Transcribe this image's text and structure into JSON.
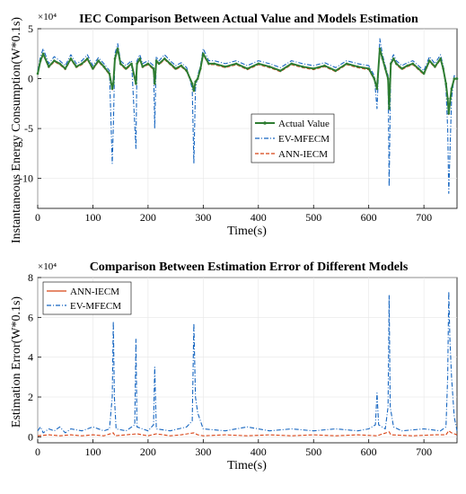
{
  "chart_data": [
    {
      "type": "line",
      "title": "IEC Comparison Between Actual Value and Models Estimation",
      "xlabel": "Time(s)",
      "ylabel": "Instantaneous Energy Consumption(W*0.1s)",
      "y_exponent_label": "×10⁴",
      "xlim": [
        0,
        760
      ],
      "ylim": [
        -13,
        5
      ],
      "xticks": [
        "0",
        "100",
        "200",
        "300",
        "400",
        "500",
        "600",
        "700"
      ],
      "yticks": [
        "5",
        "0",
        "-5",
        "-10"
      ],
      "legend_position": "center-right",
      "colors": {
        "actual": "#2e7d32",
        "ev": "#1565c0",
        "ann": "#d84315"
      },
      "series": [
        {
          "name": "Actual Value",
          "x": [
            0,
            5,
            10,
            20,
            30,
            40,
            50,
            60,
            70,
            80,
            90,
            100,
            110,
            120,
            130,
            135,
            137,
            140,
            145,
            150,
            160,
            170,
            178,
            180,
            185,
            190,
            200,
            210,
            212,
            215,
            220,
            230,
            240,
            250,
            260,
            270,
            280,
            283,
            286,
            290,
            295,
            300,
            310,
            320,
            340,
            360,
            380,
            400,
            420,
            440,
            460,
            480,
            500,
            520,
            540,
            560,
            580,
            600,
            610,
            615,
            620,
            625,
            630,
            635,
            637,
            640,
            645,
            650,
            660,
            670,
            680,
            690,
            700,
            710,
            720,
            730,
            735,
            740,
            743,
            745,
            748,
            750,
            755,
            760
          ],
          "y": [
            0.5,
            1.8,
            2.5,
            1.2,
            1.8,
            1.5,
            1.0,
            2.0,
            1.2,
            1.5,
            2.0,
            1.0,
            1.8,
            1.2,
            0.5,
            -1.0,
            -0.5,
            2.0,
            3.0,
            1.5,
            1.0,
            1.5,
            -0.5,
            1.5,
            2.0,
            1.2,
            1.5,
            1.0,
            -0.5,
            1.8,
            1.5,
            2.0,
            1.5,
            1.0,
            1.3,
            0.8,
            -0.5,
            -1.2,
            -0.3,
            0.0,
            1.0,
            2.5,
            1.5,
            1.5,
            1.2,
            1.5,
            1.0,
            1.5,
            1.2,
            0.8,
            1.5,
            1.2,
            1.0,
            1.3,
            0.8,
            1.5,
            1.2,
            1.0,
            0.0,
            -1.0,
            3.0,
            2.0,
            1.0,
            0.0,
            -3.0,
            1.5,
            2.0,
            1.5,
            1.0,
            1.3,
            1.5,
            1.0,
            0.5,
            1.8,
            1.2,
            2.0,
            1.0,
            -0.5,
            -2.0,
            -3.5,
            -2.0,
            -1.0,
            0.0,
            0.0
          ]
        },
        {
          "name": "EV-MFECM",
          "x": [
            0,
            5,
            10,
            20,
            30,
            40,
            50,
            60,
            70,
            80,
            90,
            100,
            110,
            120,
            130,
            135,
            137,
            140,
            145,
            150,
            160,
            170,
            178,
            180,
            185,
            190,
            200,
            210,
            212,
            215,
            220,
            230,
            240,
            250,
            260,
            270,
            280,
            283,
            286,
            290,
            295,
            300,
            310,
            320,
            340,
            360,
            380,
            400,
            420,
            440,
            460,
            480,
            500,
            520,
            540,
            560,
            580,
            600,
            610,
            615,
            620,
            625,
            630,
            635,
            637,
            640,
            645,
            650,
            660,
            670,
            680,
            690,
            700,
            710,
            720,
            730,
            735,
            740,
            743,
            745,
            748,
            750,
            755,
            760
          ],
          "y": [
            0.8,
            2.2,
            3.0,
            1.5,
            2.2,
            1.8,
            1.3,
            2.4,
            1.5,
            1.8,
            2.4,
            1.3,
            2.1,
            1.5,
            0.8,
            -8.5,
            -5.0,
            2.5,
            3.5,
            1.8,
            1.3,
            1.8,
            -7.0,
            1.8,
            2.4,
            1.5,
            1.8,
            1.3,
            -5.0,
            2.2,
            1.8,
            2.4,
            1.8,
            1.3,
            1.6,
            1.1,
            -1.0,
            -8.5,
            -1.0,
            0.3,
            1.3,
            3.0,
            1.8,
            1.8,
            1.5,
            1.8,
            1.3,
            1.8,
            1.5,
            1.1,
            1.8,
            1.5,
            1.3,
            1.6,
            1.1,
            1.8,
            1.5,
            1.3,
            0.3,
            -3.0,
            4.0,
            2.4,
            1.3,
            0.3,
            -10.8,
            1.8,
            2.4,
            1.8,
            1.3,
            1.6,
            1.8,
            1.3,
            0.8,
            2.2,
            1.5,
            2.4,
            1.3,
            -1.0,
            -5.0,
            -11.5,
            -6.0,
            -2.0,
            0.3,
            0.0
          ]
        },
        {
          "name": "ANN-IECM",
          "x": [
            0,
            5,
            10,
            20,
            30,
            40,
            50,
            60,
            70,
            80,
            90,
            100,
            110,
            120,
            130,
            135,
            137,
            140,
            145,
            150,
            160,
            170,
            178,
            180,
            185,
            190,
            200,
            210,
            212,
            215,
            220,
            230,
            240,
            250,
            260,
            270,
            280,
            283,
            286,
            290,
            295,
            300,
            310,
            320,
            340,
            360,
            380,
            400,
            420,
            440,
            460,
            480,
            500,
            520,
            540,
            560,
            580,
            600,
            610,
            615,
            620,
            625,
            630,
            635,
            637,
            640,
            645,
            650,
            660,
            670,
            680,
            690,
            700,
            710,
            720,
            730,
            735,
            740,
            743,
            745,
            748,
            750,
            755,
            760
          ],
          "y": [
            0.5,
            1.7,
            2.4,
            1.1,
            1.7,
            1.4,
            0.9,
            1.9,
            1.1,
            1.4,
            1.9,
            0.9,
            1.7,
            1.1,
            0.4,
            -1.2,
            -0.6,
            1.9,
            2.9,
            1.4,
            0.9,
            1.4,
            -0.6,
            1.4,
            1.9,
            1.1,
            1.4,
            0.9,
            -0.6,
            1.7,
            1.4,
            1.9,
            1.4,
            0.9,
            1.2,
            0.7,
            -0.6,
            -1.3,
            -0.4,
            -0.1,
            0.9,
            2.4,
            1.4,
            1.4,
            1.1,
            1.4,
            0.9,
            1.4,
            1.1,
            0.7,
            1.4,
            1.1,
            0.9,
            1.2,
            0.7,
            1.4,
            1.1,
            0.9,
            -0.1,
            -1.1,
            2.9,
            1.9,
            0.9,
            -0.1,
            -3.1,
            1.4,
            1.9,
            1.4,
            0.9,
            1.2,
            1.4,
            0.9,
            0.4,
            1.7,
            1.1,
            1.9,
            0.9,
            -0.6,
            -2.1,
            -3.6,
            -2.1,
            -1.1,
            -0.1,
            0.0
          ]
        }
      ]
    },
    {
      "type": "line",
      "title": "Comparison Between Estimation Error of Different Models",
      "xlabel": "Time(s)",
      "ylabel": "Estimation Error(W*0.1s)",
      "y_exponent_label": "×10⁴",
      "xlim": [
        0,
        760
      ],
      "ylim": [
        -0.3,
        8
      ],
      "xticks": [
        "0",
        "100",
        "200",
        "300",
        "400",
        "500",
        "600",
        "700"
      ],
      "yticks": [
        "8",
        "6",
        "4",
        "2",
        "0"
      ],
      "legend_position": "top-left",
      "colors": {
        "ann": "#d84315",
        "ev": "#1565c0"
      },
      "series": [
        {
          "name": "ANN-IECM",
          "x": [
            0,
            20,
            40,
            60,
            80,
            100,
            120,
            137,
            140,
            160,
            180,
            200,
            215,
            240,
            260,
            283,
            290,
            300,
            340,
            380,
            420,
            460,
            500,
            540,
            580,
            615,
            620,
            637,
            640,
            680,
            720,
            740,
            745,
            750,
            760
          ],
          "y": [
            0.05,
            0.1,
            0.05,
            0.1,
            0.05,
            0.1,
            0.05,
            0.2,
            0.05,
            0.1,
            0.15,
            0.05,
            0.15,
            0.05,
            0.1,
            0.2,
            0.1,
            0.05,
            0.1,
            0.05,
            0.1,
            0.05,
            0.1,
            0.05,
            0.1,
            0.05,
            0.1,
            0.25,
            0.1,
            0.05,
            0.1,
            0.1,
            0.3,
            0.2,
            0.1
          ]
        },
        {
          "name": "EV-MFECM",
          "x": [
            0,
            5,
            10,
            20,
            30,
            40,
            50,
            60,
            80,
            100,
            120,
            130,
            135,
            137,
            139,
            142,
            160,
            176,
            178,
            180,
            200,
            210,
            212,
            215,
            240,
            270,
            280,
            283,
            286,
            290,
            300,
            340,
            380,
            420,
            460,
            500,
            540,
            580,
            600,
            612,
            615,
            618,
            630,
            635,
            637,
            639,
            645,
            660,
            700,
            730,
            740,
            743,
            745,
            747,
            750,
            755,
            760
          ],
          "y": [
            0.3,
            0.5,
            0.2,
            0.4,
            0.3,
            0.5,
            0.2,
            0.4,
            0.3,
            0.5,
            0.3,
            0.4,
            2.0,
            5.8,
            2.0,
            0.4,
            0.3,
            0.6,
            4.9,
            0.5,
            0.3,
            0.6,
            3.5,
            0.4,
            0.3,
            0.5,
            0.8,
            5.7,
            2.0,
            1.2,
            0.4,
            0.3,
            0.5,
            0.3,
            0.4,
            0.3,
            0.4,
            0.3,
            0.4,
            0.6,
            2.2,
            0.6,
            0.4,
            1.5,
            7.1,
            1.5,
            0.5,
            0.3,
            0.4,
            0.3,
            0.5,
            3.0,
            7.3,
            5.0,
            3.0,
            1.0,
            0.3
          ]
        }
      ]
    }
  ]
}
